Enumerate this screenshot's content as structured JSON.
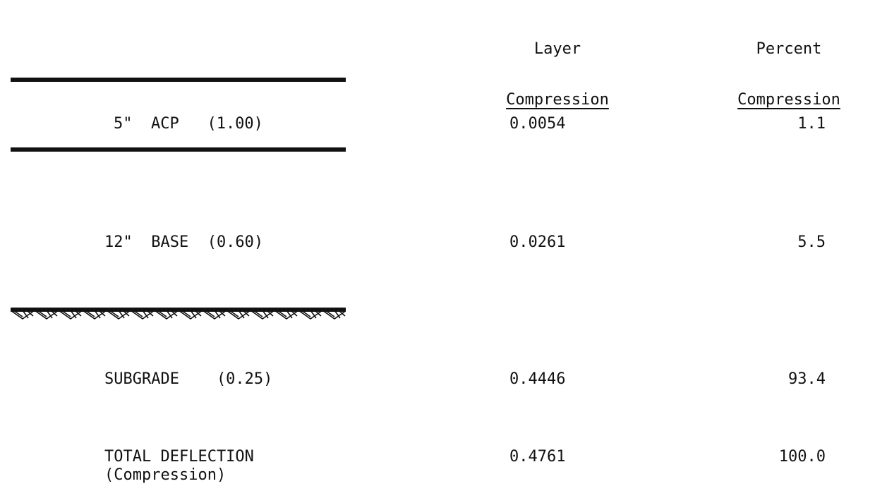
{
  "headers": {
    "layer_compression": [
      "Layer",
      "Compression"
    ],
    "percent_compression": [
      "Percent",
      "Compression"
    ]
  },
  "rows": [
    {
      "label": "5\"  ACP   (1.00)",
      "layer_compression": "0.0054",
      "percent_compression": "1.1"
    },
    {
      "label": "12\"  BASE  (0.60)",
      "layer_compression": "0.0261",
      "percent_compression": "5.5"
    },
    {
      "label": "SUBGRADE    (0.25)",
      "layer_compression": "0.4446",
      "percent_compression": "93.4"
    },
    {
      "label": "TOTAL DEFLECTION",
      "sublabel": "(Compression)",
      "layer_compression": "0.4761",
      "percent_compression": "100.0"
    }
  ],
  "colors": {
    "ink": "#111111",
    "background": "#ffffff"
  }
}
